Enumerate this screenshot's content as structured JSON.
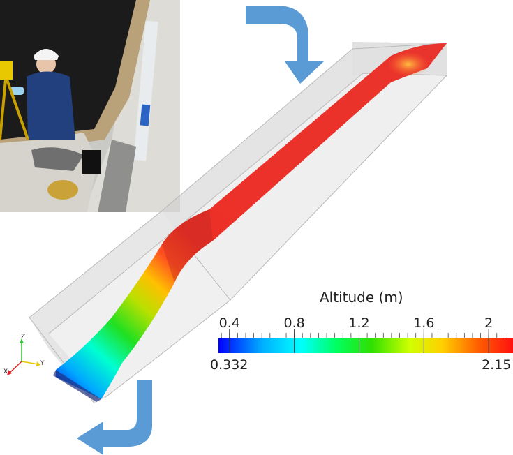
{
  "colorbar": {
    "title": "Altitude (m)",
    "min_label": "0.332",
    "max_label": "2.15",
    "min": 0.332,
    "max": 2.15,
    "ticks": [
      {
        "value": 0.4,
        "label": "0.4"
      },
      {
        "value": 0.8,
        "label": "0.8"
      },
      {
        "value": 1.2,
        "label": "1.2"
      },
      {
        "value": 1.6,
        "label": "1.6"
      },
      {
        "value": 2.0,
        "label": "2"
      }
    ],
    "colors": [
      "#0000ff",
      "#00b0ff",
      "#00ffff",
      "#00ff60",
      "#30e000",
      "#d0ff00",
      "#ffd000",
      "#ff6000",
      "#ff1010"
    ]
  },
  "axes_triad": {
    "x": "X",
    "y": "Y",
    "z": "Z"
  },
  "flow_arrows": [
    {
      "name": "inflow-arrow",
      "direction": "down"
    },
    {
      "name": "outflow-arrow",
      "direction": "left"
    }
  ],
  "colors": {
    "arrow": "#5b9bd5",
    "channel": "#cccccc",
    "surface_high": "#e8342c"
  }
}
